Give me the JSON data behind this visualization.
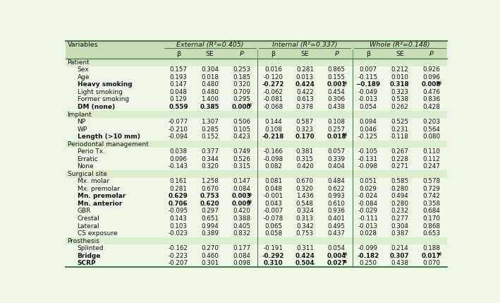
{
  "rows": [
    {
      "label": "Patient",
      "section": true,
      "indent": 0,
      "vals": [
        "",
        "",
        "",
        "",
        "",
        "",
        "",
        "",
        ""
      ]
    },
    {
      "label": "Sex",
      "section": false,
      "indent": 1,
      "vals": [
        "0.157",
        "0.304",
        "0.253",
        "0.016",
        "0.281",
        "0.865",
        "0.007",
        "0.212",
        "0.926"
      ],
      "bold_cols": []
    },
    {
      "label": "Age",
      "section": false,
      "indent": 1,
      "vals": [
        "0.193",
        "0.018",
        "0.185",
        "-0.120",
        "0.013",
        "0.155",
        "-0.115",
        "0.010",
        "0.096"
      ],
      "bold_cols": []
    },
    {
      "label": "Heavy smoking",
      "section": false,
      "indent": 1,
      "vals": [
        "0.147",
        "0.480",
        "0.320",
        "-0.272",
        "0.424",
        "0.001b)",
        "−0.189",
        "0.318",
        "0.008b)"
      ],
      "bold_cols": [
        3,
        4,
        5,
        6,
        7,
        8
      ],
      "label_bold": true
    },
    {
      "label": "Light smoking",
      "section": false,
      "indent": 1,
      "vals": [
        "0.048",
        "0.480",
        "0.709",
        "-0.062",
        "0.422",
        "0.454",
        "-0.049",
        "0.323",
        "0.476"
      ],
      "bold_cols": []
    },
    {
      "label": "Former smoking",
      "section": false,
      "indent": 1,
      "vals": [
        "0.129",
        "1.400",
        "0.295",
        "-0.081",
        "0.613",
        "0.306",
        "-0.013",
        "0.538",
        "0.836"
      ],
      "bold_cols": []
    },
    {
      "label": "DM (none)",
      "section": false,
      "indent": 1,
      "vals": [
        "0.559",
        "0.385",
        "0.000b)",
        "-0.068",
        "0.378",
        "0.438",
        "0.054",
        "0.262",
        "0.428"
      ],
      "bold_cols": [
        0,
        1,
        2
      ],
      "label_bold": true
    },
    {
      "label": "Implant",
      "section": true,
      "indent": 0,
      "vals": [
        "",
        "",
        "",
        "",
        "",
        "",
        "",
        "",
        ""
      ]
    },
    {
      "label": "NP",
      "section": false,
      "indent": 1,
      "vals": [
        "-0.077",
        "1.307",
        "0.506",
        "0.144",
        "0.587",
        "0.108",
        "0.094",
        "0.525",
        "0.203"
      ],
      "bold_cols": []
    },
    {
      "label": "WP",
      "section": false,
      "indent": 1,
      "vals": [
        "-0.210",
        "0.285",
        "0.105",
        "0.108",
        "0.323",
        "0.257",
        "0.046",
        "0.231",
        "0.564"
      ],
      "bold_cols": []
    },
    {
      "label": "Length (>10 mm)",
      "section": false,
      "indent": 1,
      "vals": [
        "-0.094",
        "0.152",
        "0.423",
        "-0.218",
        "0.170",
        "0.018b)",
        "-0.125",
        "0.118",
        "0.080"
      ],
      "bold_cols": [
        3,
        4,
        5
      ],
      "label_bold": true
    },
    {
      "label": "Periodontal management",
      "section": true,
      "indent": 0,
      "vals": [
        "",
        "",
        "",
        "",
        "",
        "",
        "",
        "",
        ""
      ]
    },
    {
      "label": "Perio Tx.",
      "section": false,
      "indent": 1,
      "vals": [
        "0.038",
        "0.377",
        "0.749",
        "-0.166",
        "0.381",
        "0.057",
        "-0.105",
        "0.267",
        "0.110"
      ],
      "bold_cols": []
    },
    {
      "label": "Erratic",
      "section": false,
      "indent": 1,
      "vals": [
        "0.096",
        "0.344",
        "0.526",
        "-0.098",
        "0.315",
        "0.339",
        "-0.131",
        "0.228",
        "0.112"
      ],
      "bold_cols": []
    },
    {
      "label": "None",
      "section": false,
      "indent": 1,
      "vals": [
        "-0.143",
        "0.320",
        "0.315",
        "0.082",
        "0.420",
        "0.404",
        "-0.098",
        "0.271",
        "0.247"
      ],
      "bold_cols": []
    },
    {
      "label": "Surgical site",
      "section": true,
      "indent": 0,
      "vals": [
        "",
        "",
        "",
        "",
        "",
        "",
        "",
        "",
        ""
      ]
    },
    {
      "label": "Mx. molar",
      "section": false,
      "indent": 1,
      "vals": [
        "0.161",
        "1.258",
        "0.147",
        "0.081",
        "0.670",
        "0.484",
        "0.051",
        "0.585",
        "0.578"
      ],
      "bold_cols": []
    },
    {
      "label": "Mx. premolar",
      "section": false,
      "indent": 1,
      "vals": [
        "0.281",
        "0.670",
        "0.084",
        "0.048",
        "0.320",
        "0.622",
        "0.029",
        "0.280",
        "0.729"
      ],
      "bold_cols": []
    },
    {
      "label": "Mn. premolar",
      "section": false,
      "indent": 1,
      "vals": [
        "0.629",
        "0.753",
        "0.003b)",
        "-0.001",
        "1.436",
        "0.993",
        "-0.024",
        "0.494",
        "0.742"
      ],
      "bold_cols": [
        0,
        1,
        2
      ],
      "label_bold": true
    },
    {
      "label": "Mn. anterior",
      "section": false,
      "indent": 1,
      "vals": [
        "0.706",
        "0.620",
        "0.009b)",
        "0.043",
        "0.548",
        "0.610",
        "-0.084",
        "0.280",
        "0.358"
      ],
      "bold_cols": [
        0,
        1,
        2
      ],
      "label_bold": true
    },
    {
      "label": "GBR",
      "section": false,
      "indent": 1,
      "vals": [
        "-0.095",
        "0.297",
        "0.420",
        "-0.007",
        "0.324",
        "0.936",
        "-0.029",
        "0.232",
        "0.684"
      ],
      "bold_cols": []
    },
    {
      "label": "Crestal",
      "section": false,
      "indent": 1,
      "vals": [
        "0.143",
        "0.651",
        "0.388",
        "-0.078",
        "0.313",
        "0.401",
        "-0.111",
        "0.277",
        "0.170"
      ],
      "bold_cols": []
    },
    {
      "label": "Lateral",
      "section": false,
      "indent": 1,
      "vals": [
        "0.103",
        "0.994",
        "0.405",
        "0.065",
        "0.342",
        "0.495",
        "-0.013",
        "0.304",
        "0.868"
      ],
      "bold_cols": []
    },
    {
      "label": "CS exposure",
      "section": false,
      "indent": 1,
      "vals": [
        "-0.023",
        "0.389",
        "0.832",
        "0.058",
        "0.753",
        "0.437",
        "0.028",
        "0.387",
        "0.653"
      ],
      "bold_cols": []
    },
    {
      "label": "Prosthesis",
      "section": true,
      "indent": 0,
      "vals": [
        "",
        "",
        "",
        "",
        "",
        "",
        "",
        "",
        ""
      ]
    },
    {
      "label": "Splinted",
      "section": false,
      "indent": 1,
      "vals": [
        "-0.162",
        "0.270",
        "0.177",
        "-0.191",
        "0.311",
        "0.054",
        "-0.099",
        "0.214",
        "0.188"
      ],
      "bold_cols": []
    },
    {
      "label": "Bridge",
      "section": false,
      "indent": 1,
      "vals": [
        "-0.223",
        "0.460",
        "0.084",
        "-0.292",
        "0.424",
        "0.004b)",
        "-0.182",
        "0.307",
        "0.017b)"
      ],
      "bold_cols": [
        3,
        4,
        5,
        6,
        7,
        8
      ],
      "label_bold": true
    },
    {
      "label": "SCRP",
      "section": false,
      "indent": 1,
      "vals": [
        "-0.207",
        "0.301",
        "0.098",
        "0.310",
        "0.504",
        "0.027b)",
        "0.250",
        "0.438",
        "0.070"
      ],
      "bold_cols": [
        3,
        4,
        5
      ],
      "label_bold": true
    }
  ],
  "bg_color": "#eef6e8",
  "section_bg": "#ddeece",
  "header_bg": "#c8ddb5",
  "border_color": "#4d7a4d",
  "text_color": "#111111"
}
